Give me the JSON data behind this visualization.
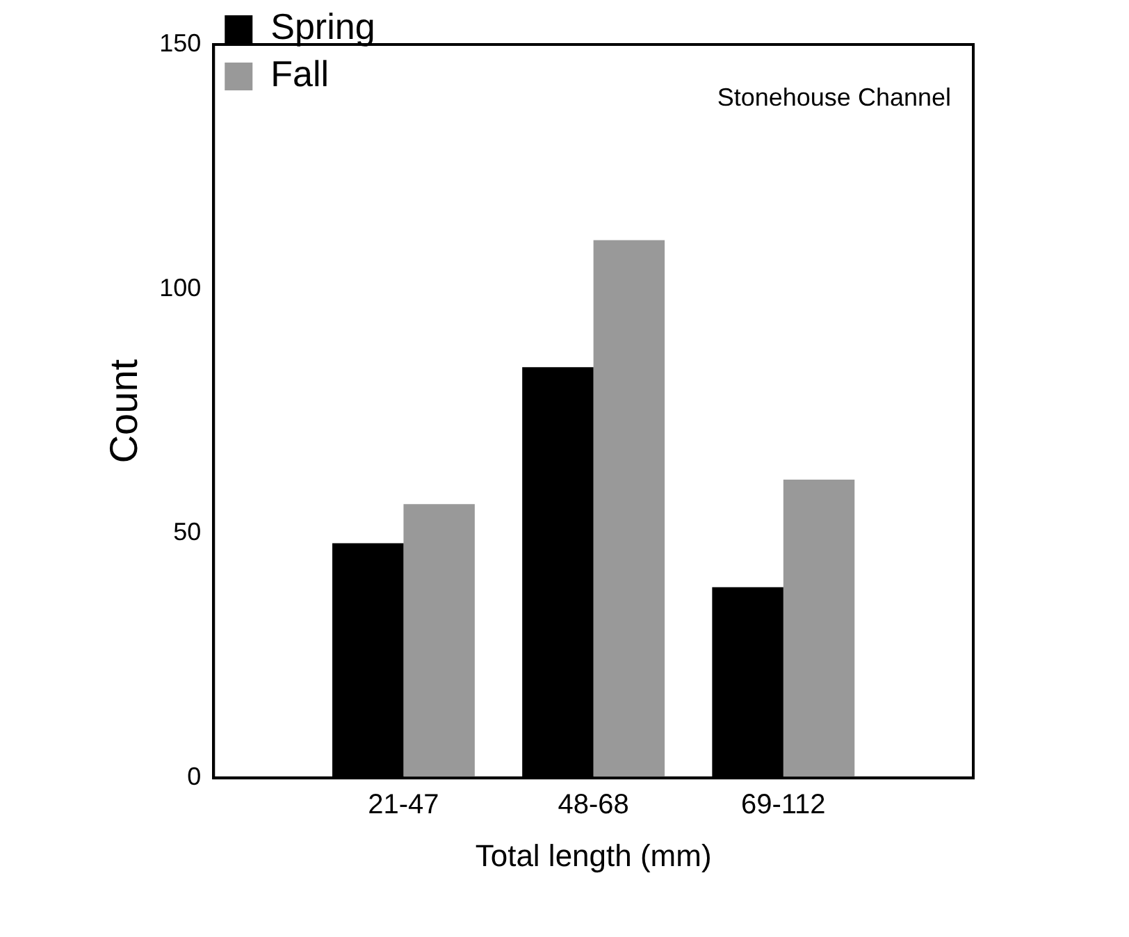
{
  "chart_data": {
    "type": "bar",
    "xlabel": "Total length (mm)",
    "ylabel": "Count",
    "categories": [
      null,
      "21-47",
      "48-68",
      "69-112",
      null
    ],
    "series": [
      {
        "name": "Spring",
        "color": "#000000",
        "values": [
          null,
          48,
          84,
          39,
          null
        ]
      },
      {
        "name": "Fall",
        "color": "#999999",
        "values": [
          null,
          56,
          110,
          61,
          null
        ]
      }
    ],
    "ylim": [
      0,
      150
    ],
    "yticks": [
      0,
      50,
      100,
      150
    ],
    "grid": false,
    "legend": "top left",
    "annotations": [
      "Stonehouse Channel"
    ]
  }
}
